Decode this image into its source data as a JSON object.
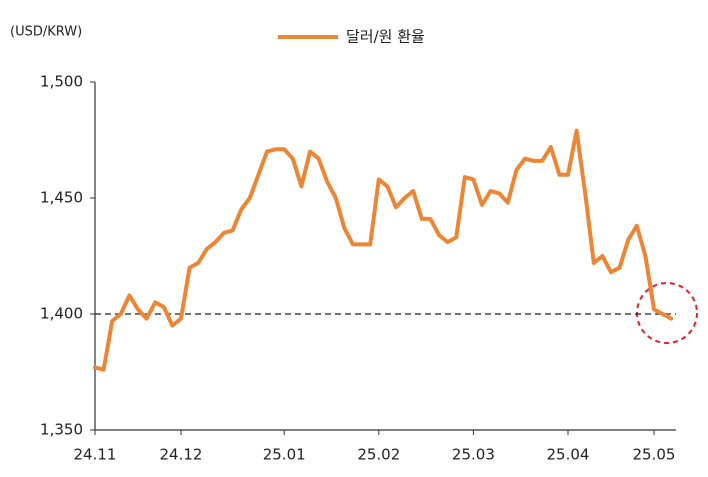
{
  "chart_data": {
    "type": "line",
    "y_axis_label": "(USD/KRW)",
    "categories": [
      "24.11",
      null,
      null,
      null,
      null,
      null,
      null,
      null,
      null,
      null,
      "24.12",
      null,
      null,
      null,
      null,
      null,
      null,
      null,
      null,
      null,
      null,
      null,
      "25.01",
      null,
      null,
      null,
      null,
      null,
      null,
      null,
      null,
      null,
      null,
      "25.02",
      null,
      null,
      null,
      null,
      null,
      null,
      null,
      null,
      null,
      null,
      "25.03",
      null,
      null,
      null,
      null,
      null,
      null,
      null,
      null,
      null,
      null,
      "25.04",
      null,
      null,
      null,
      null,
      null,
      null,
      null,
      null,
      null,
      "25.05",
      null,
      null
    ],
    "series": [
      {
        "name": "달러/원 환율",
        "color": "#ec8534",
        "values": [
          1377,
          1376,
          1397,
          1400,
          1408,
          1402,
          1398,
          1405,
          1403,
          1395,
          1398,
          1420,
          1422,
          1428,
          1431,
          1435,
          1436,
          1445,
          1450,
          1460,
          1470,
          1471,
          1471,
          1467,
          1455,
          1470,
          1467,
          1457,
          1450,
          1437,
          1430,
          1430,
          1430,
          1458,
          1455,
          1446,
          1450,
          1453,
          1441,
          1441,
          1434,
          1431,
          1433,
          1459,
          1458,
          1447,
          1453,
          1452,
          1448,
          1462,
          1467,
          1466,
          1466,
          1472,
          1460,
          1460,
          1479,
          1452,
          1422,
          1425,
          1418,
          1420,
          1432,
          1438,
          1425,
          1402,
          1400,
          1398
        ]
      }
    ],
    "reference_line": 1400,
    "ylim": [
      1350,
      1500
    ],
    "yticks": [
      {
        "value": 1350,
        "label": "1,350"
      },
      {
        "value": 1400,
        "label": "1,400"
      },
      {
        "value": 1450,
        "label": "1,450"
      },
      {
        "value": 1500,
        "label": "1,500"
      }
    ],
    "grid": false,
    "legend": "top"
  }
}
